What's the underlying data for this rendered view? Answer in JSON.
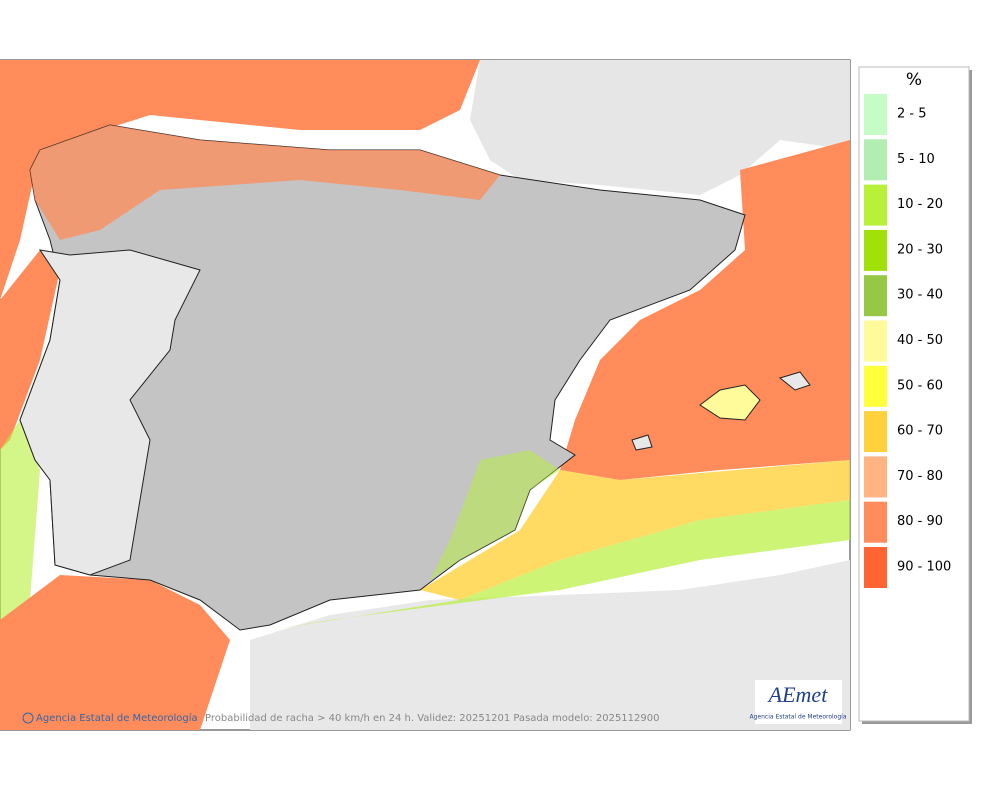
{
  "map": {
    "legend": {
      "title": "%",
      "items": [
        {
          "label": "2 - 5",
          "color": "#c6fcc6"
        },
        {
          "label": "5 - 10",
          "color": "#b2eeb2"
        },
        {
          "label": "10 - 20",
          "color": "#b8f03a"
        },
        {
          "label": "20 - 30",
          "color": "#a2e00a"
        },
        {
          "label": "30 - 40",
          "color": "#96c846"
        },
        {
          "label": "40 - 50",
          "color": "#fffa9a"
        },
        {
          "label": "50 - 60",
          "color": "#ffff3c"
        },
        {
          "label": "60 - 70",
          "color": "#ffd23c"
        },
        {
          "label": "70 - 80",
          "color": "#ffb482"
        },
        {
          "label": "80 - 90",
          "color": "#ff8c5a"
        },
        {
          "label": "90 - 100",
          "color": "#ff6432"
        }
      ]
    },
    "credit": "Agencia Estatal de Meteorología",
    "caption": "Probabilidad de racha > 40 km/h en 24 h. Validez: 20251201 Pasada modelo: 2025112900",
    "logo": {
      "name": "AEmet",
      "subtitle": "Agencia Estatal de Meteorología"
    }
  }
}
